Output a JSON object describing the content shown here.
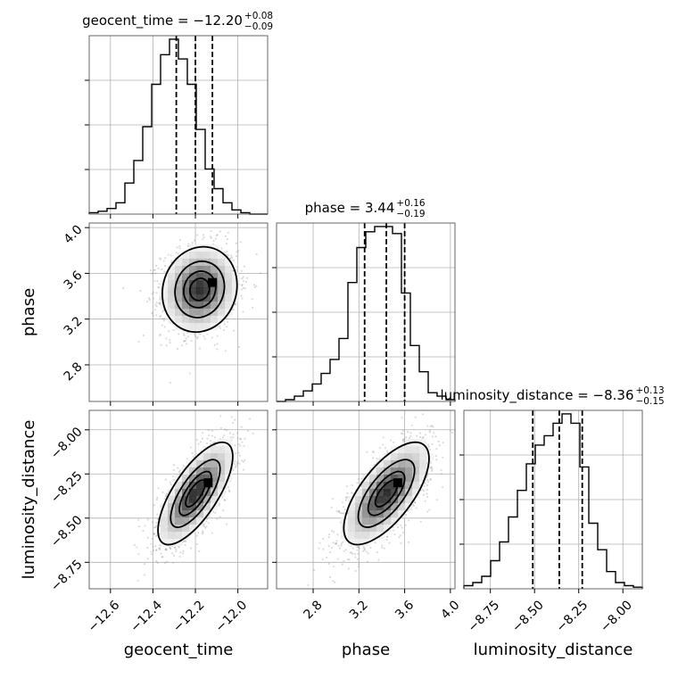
{
  "chart_data": {
    "type": "corner",
    "parameters": [
      {
        "name": "geocent_time",
        "axis_label": "geocent_time",
        "title_prefix": "geocent_time = ",
        "median": "−12.20",
        "plus": "+0.08",
        "minus": "−0.09",
        "range": [
          -12.7,
          -11.86
        ],
        "ticks": [
          -12.6,
          -12.4,
          -12.2,
          -12.0
        ],
        "tick_labels": [
          "−12.6",
          "−12.4",
          "−12.2",
          "−12.0"
        ],
        "quantiles": [
          -12.29,
          -12.2,
          -12.12
        ],
        "histogram": {
          "edges": [
            -12.7,
            -12.658,
            -12.616,
            -12.574,
            -12.532,
            -12.49,
            -12.448,
            -12.406,
            -12.364,
            -12.322,
            -12.28,
            -12.238,
            -12.196,
            -12.154,
            -12.112,
            -12.07,
            -12.028,
            -11.986,
            -11.944,
            -11.902,
            -11.86
          ],
          "counts": [
            1,
            2,
            4,
            8,
            22,
            38,
            62,
            92,
            113,
            124,
            110,
            92,
            60,
            32,
            18,
            8,
            3,
            1,
            0,
            0
          ]
        }
      },
      {
        "name": "phase",
        "axis_label": "phase",
        "title_prefix": "phase = ",
        "median": "3.44",
        "plus": "+0.16",
        "minus": "−0.19",
        "range": [
          2.48,
          4.04
        ],
        "ticks": [
          2.8,
          3.2,
          3.6,
          4.0
        ],
        "tick_labels": [
          "2.8",
          "3.2",
          "3.6",
          "4.0"
        ],
        "quantiles": [
          3.25,
          3.44,
          3.6
        ],
        "histogram": {
          "edges": [
            2.48,
            2.558,
            2.636,
            2.714,
            2.792,
            2.87,
            2.948,
            3.026,
            3.104,
            3.182,
            3.26,
            3.338,
            3.416,
            3.494,
            3.572,
            3.65,
            3.728,
            3.806,
            3.884,
            3.962,
            4.04
          ],
          "counts": [
            0,
            1,
            3,
            6,
            10,
            16,
            24,
            36,
            68,
            88,
            97,
            100,
            100,
            96,
            62,
            32,
            17,
            5,
            3,
            1
          ]
        }
      },
      {
        "name": "luminosity_distance",
        "axis_label": "luminosity_distance",
        "title_prefix": "luminosity_distance = ",
        "median": "−8.36",
        "plus": "+0.13",
        "minus": "−0.15",
        "range": [
          -8.9,
          -7.89
        ],
        "ticks": [
          -8.75,
          -8.5,
          -8.25,
          -8.0
        ],
        "tick_labels": [
          "−8.75",
          "−8.50",
          "−8.25",
          "−8.00"
        ],
        "quantiles": [
          -8.51,
          -8.36,
          -8.23
        ],
        "histogram": {
          "edges": [
            -8.9,
            -8.8495,
            -8.799,
            -8.7485,
            -8.698,
            -8.6475,
            -8.597,
            -8.5465,
            -8.496,
            -8.4455,
            -8.395,
            -8.3445,
            -8.294,
            -8.2435,
            -8.193,
            -8.1425,
            -8.092,
            -8.0415,
            -7.991,
            -7.9405,
            -7.89
          ],
          "counts": [
            2,
            4,
            8,
            18,
            30,
            46,
            63,
            80,
            92,
            98,
            106,
            112,
            106,
            78,
            42,
            25,
            11,
            4,
            2,
            1
          ]
        }
      }
    ],
    "joint": [
      {
        "x_param": "geocent_time",
        "y_param": "phase",
        "center": [
          -12.18,
          3.46
        ],
        "sigma": [
          0.085,
          0.18
        ],
        "correlation": 0.1,
        "peak_bin": [
          -12.12,
          3.52
        ]
      },
      {
        "x_param": "geocent_time",
        "y_param": "luminosity_distance",
        "center": [
          -12.2,
          -8.36
        ],
        "sigma": [
          0.085,
          0.14
        ],
        "correlation": 0.72,
        "peak_bin": [
          -12.14,
          -8.3
        ]
      },
      {
        "x_param": "phase",
        "y_param": "luminosity_distance",
        "center": [
          3.44,
          -8.36
        ],
        "sigma": [
          0.18,
          0.14
        ],
        "correlation": 0.68,
        "peak_bin": [
          3.54,
          -8.3
        ]
      }
    ],
    "grid": true,
    "contour_levels_sigma": [
      0.5,
      1.0,
      1.5,
      2.0
    ],
    "colors": {
      "line": "#000000",
      "grid": "#b0b0b0",
      "scatter": "#8a8a8a",
      "frame": "#555555"
    }
  }
}
